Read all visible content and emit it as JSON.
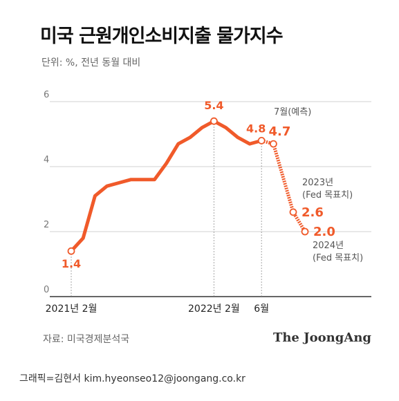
{
  "title": "미국 근원개인소비지출 물가지수",
  "unit": "단위: %, 전년 동월 대비",
  "source": "자료: 미국경제분석국",
  "brand": "The JoongAng",
  "credit": "그래픽=김현서 kim.hyeonseo12@joongang.co.kr",
  "colors": {
    "line": "#f05a2a",
    "grid": "#d0d0d0",
    "axis": "#333333",
    "label": "#f05a2a",
    "annotation": "#555555"
  },
  "chart_data": {
    "type": "line",
    "title": "미국 근원개인소비지출 물가지수",
    "ylabel": "단위: %, 전년 동월 대비",
    "ylim": [
      0,
      6
    ],
    "yticks": [
      0,
      2,
      4,
      6
    ],
    "grid": true,
    "xtick_labels": [
      "2021년 2월",
      "2022년 2월",
      "6월"
    ],
    "series": [
      {
        "style": "solid",
        "x": [
          "2021-02",
          "2021-03",
          "2021-04",
          "2021-05",
          "2021-06",
          "2021-07",
          "2021-08",
          "2021-09",
          "2021-10",
          "2021-11",
          "2021-12",
          "2022-01",
          "2022-02",
          "2022-03",
          "2022-04",
          "2022-05",
          "2022-06"
        ],
        "y": [
          1.4,
          1.8,
          3.1,
          3.4,
          3.5,
          3.6,
          3.6,
          3.6,
          4.1,
          4.7,
          4.9,
          5.2,
          5.4,
          5.2,
          4.9,
          4.7,
          4.8
        ]
      },
      {
        "style": "dashed",
        "x": [
          "2022-06",
          "2022-07",
          "2023",
          "2024"
        ],
        "y": [
          4.8,
          4.7,
          2.6,
          2.0
        ]
      }
    ],
    "point_labels": [
      {
        "x": "2021-02",
        "value": "1.4"
      },
      {
        "x": "2022-02",
        "value": "5.4"
      },
      {
        "x": "2022-06",
        "value": "4.8"
      },
      {
        "x": "2022-07",
        "value": "4.7"
      },
      {
        "x": "2023",
        "value": "2.6"
      },
      {
        "x": "2024",
        "value": "2.0"
      }
    ],
    "annotations": [
      {
        "x": "2022-07",
        "lines": [
          "7월(예측)"
        ]
      },
      {
        "x": "2023",
        "lines": [
          "2023년",
          "(Fed 목표치)"
        ]
      },
      {
        "x": "2024",
        "lines": [
          "2024년",
          "(Fed 목표치)"
        ]
      }
    ]
  }
}
